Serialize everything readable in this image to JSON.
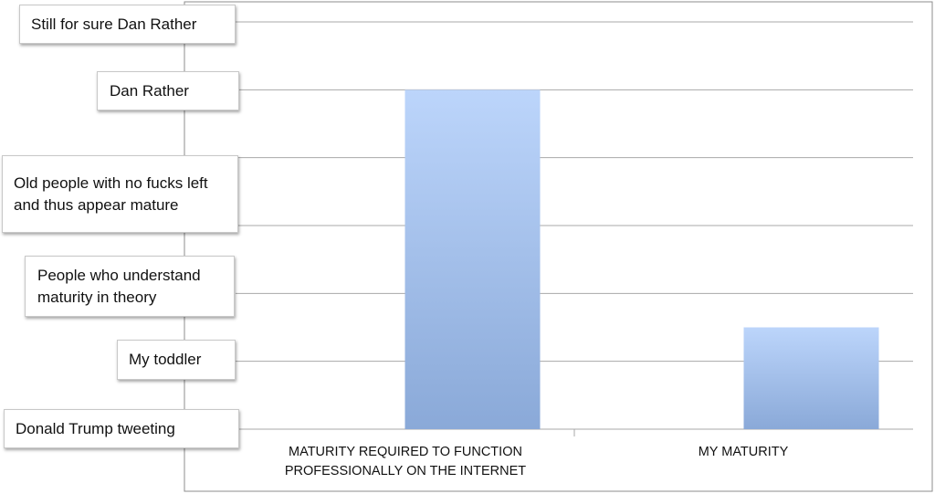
{
  "chart_data": {
    "type": "bar",
    "categories": [
      "MATURITY REQUIRED TO FUNCTION PROFESSIONALLY ON THE INTERNET",
      "MY MATURITY"
    ],
    "values": [
      5.0,
      1.5
    ],
    "ylim": [
      0,
      6
    ],
    "y_tick_labels": [
      "Donald Trump tweeting",
      "My toddler",
      "People who understand maturity in theory",
      "Old people with no fucks left and thus appear mature",
      "Dan Rather",
      "Still for sure Dan Rather"
    ],
    "grid": true,
    "legend": "none",
    "colors": {
      "bar_top": "#bcd5fb",
      "bar_bottom": "#8aa9d8",
      "grid": "#a8a8a8",
      "frame": "#8c8c8c"
    }
  }
}
